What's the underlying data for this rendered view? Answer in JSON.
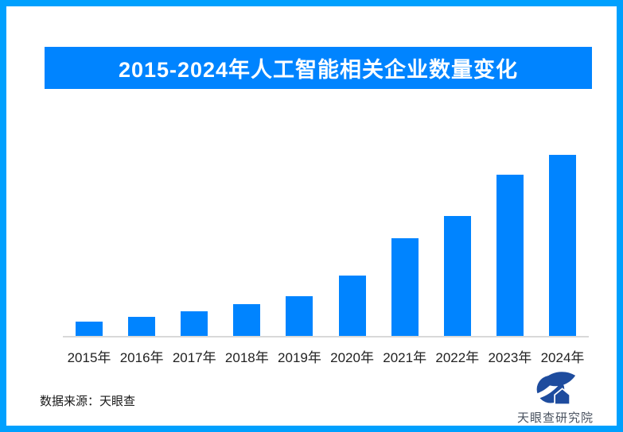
{
  "page": {
    "background": "#FFFFFF",
    "border_color": "#00A0FE"
  },
  "header": {
    "title": "2015-2024年人工智能相关企业数量变化",
    "banner_color": "#0084FF",
    "title_color": "#FFFFFF"
  },
  "chart_data": {
    "type": "bar",
    "title": "2015-2024年人工智能相关企业数量变化",
    "categories": [
      "2015年",
      "2016年",
      "2017年",
      "2018年",
      "2019年",
      "2020年",
      "2021年",
      "2022年",
      "2023年",
      "2024年"
    ],
    "values": [
      7.9,
      10.5,
      13.6,
      17.5,
      21.9,
      33.3,
      53.9,
      66.2,
      89,
      100
    ],
    "unit": "relative scale (no y-axis ticks or data labels shown in image)",
    "xlabel": "",
    "ylabel": "",
    "ylim": [
      0,
      100
    ],
    "grid": false,
    "legend": false,
    "bar_color": "#0084FF",
    "axis_line_color": "#D9D9D9",
    "tick_label_color": "#222222"
  },
  "footer": {
    "source_label": "数据来源：天眼查",
    "logo_icon": "tianyancha-eye-logo",
    "logo_text": "天眼查研究院",
    "logo_color": "#1E4C9E",
    "logo_text_color": "#4A5360"
  }
}
